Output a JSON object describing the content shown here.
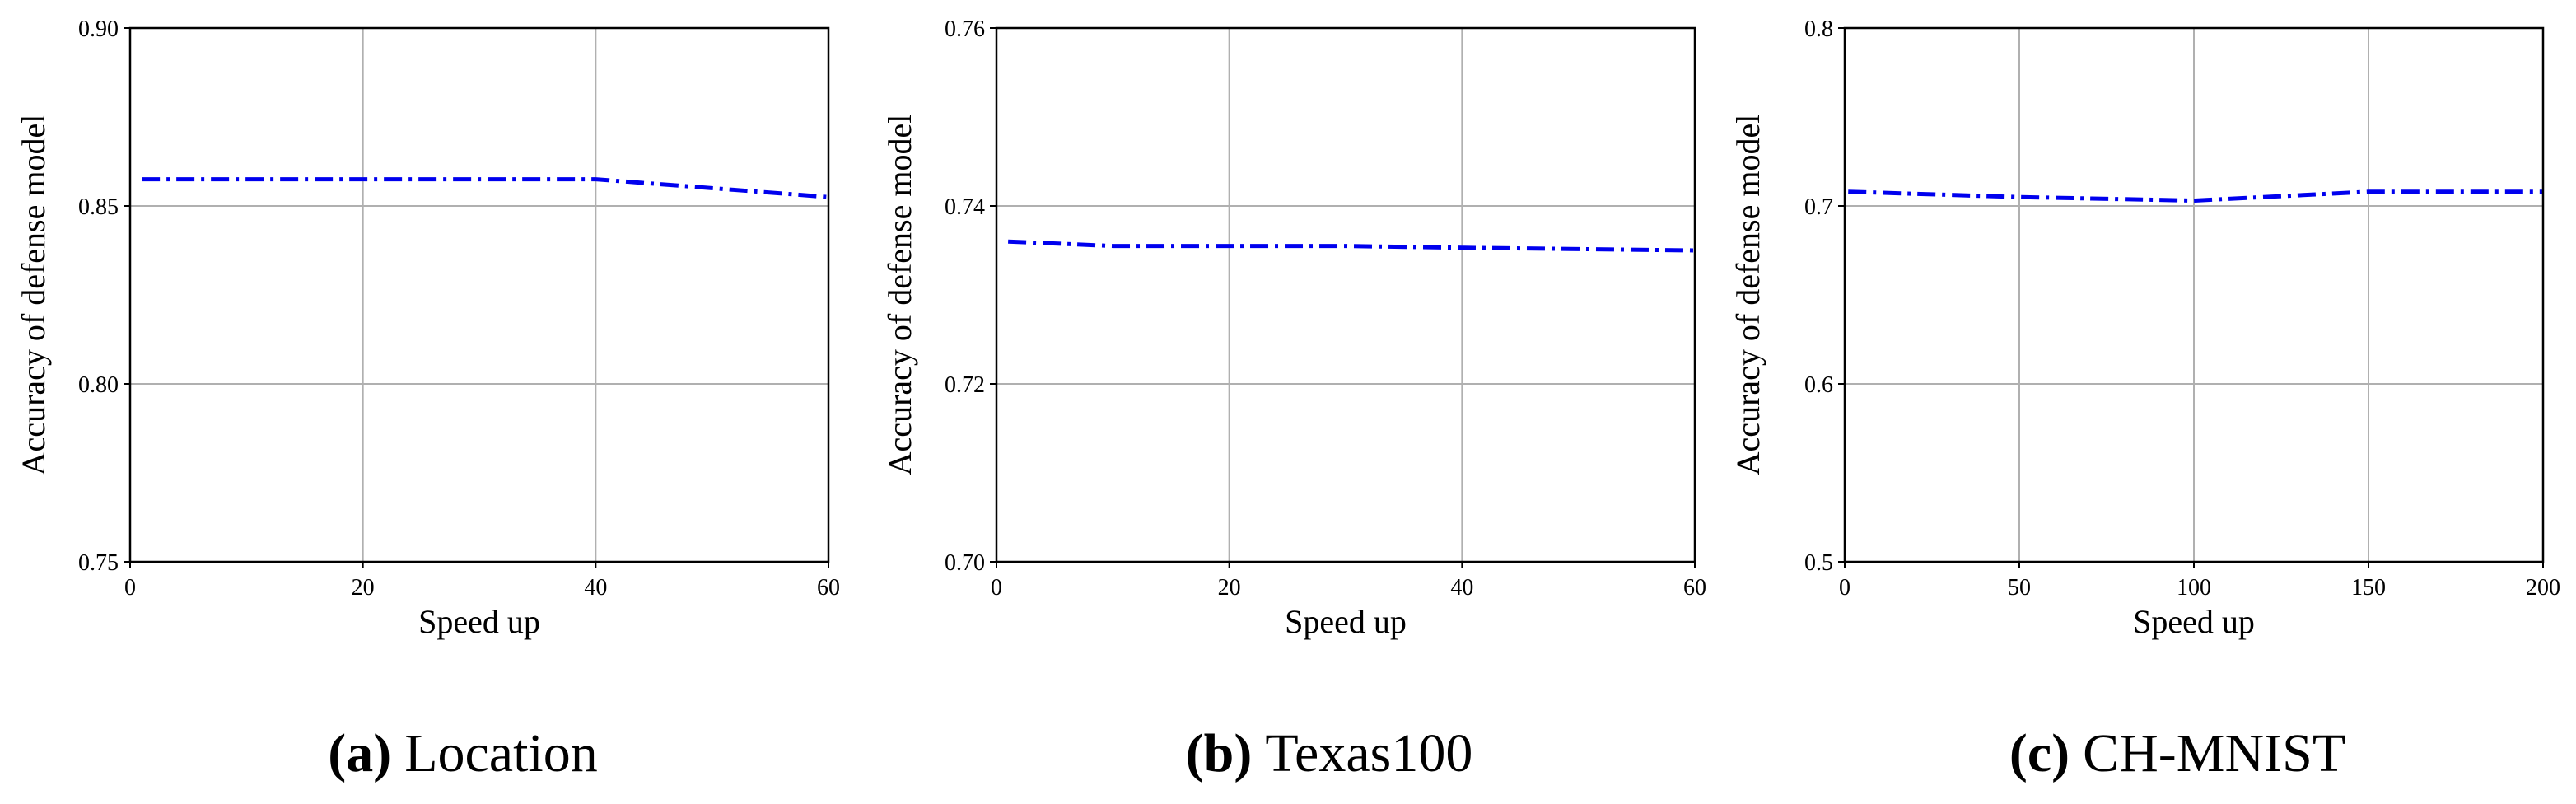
{
  "chart_data": [
    {
      "type": "line",
      "caption_label": "(a)",
      "caption": "Location",
      "xlabel": "Speed up",
      "ylabel": "Accuracy of defense model",
      "x": [
        1,
        10,
        20,
        30,
        40,
        60
      ],
      "values": [
        0.8575,
        0.8575,
        0.8575,
        0.8575,
        0.8575,
        0.8525
      ],
      "color": "#0000ee",
      "xlim": [
        0,
        60
      ],
      "xticks": [
        0,
        20,
        40,
        60
      ],
      "ylim": [
        0.75,
        0.9
      ],
      "yticks": [
        0.75,
        {
          "value": 0.8,
          "label": "0.80"
        },
        0.85,
        {
          "value": 0.9,
          "label": "0.90"
        }
      ],
      "grid": true
    },
    {
      "type": "line",
      "caption_label": "(b)",
      "caption": "Texas100",
      "xlabel": "Speed up",
      "ylabel": "Accuracy of defense model",
      "x": [
        1,
        10,
        20,
        30,
        40,
        60
      ],
      "values": [
        0.736,
        0.7355,
        0.7355,
        0.7355,
        0.7353,
        0.735
      ],
      "color": "#0000ee",
      "xlim": [
        0,
        60
      ],
      "xticks": [
        0,
        20,
        40,
        60
      ],
      "ylim": [
        0.7,
        0.76
      ],
      "yticks": [
        {
          "value": 0.7,
          "label": "0.70"
        },
        0.72,
        0.74,
        0.76
      ],
      "grid": true
    },
    {
      "type": "line",
      "caption_label": "(c)",
      "caption": "CH-MNIST",
      "xlabel": "Speed up",
      "ylabel": "Accuracy of defense model",
      "x": [
        1,
        50,
        100,
        150,
        200
      ],
      "values": [
        0.708,
        0.705,
        0.703,
        0.708,
        0.708
      ],
      "color": "#0000ee",
      "xlim": [
        0,
        200
      ],
      "xticks": [
        0,
        50,
        100,
        150,
        200
      ],
      "ylim": [
        0.5,
        0.8
      ],
      "yticks": [
        0.5,
        0.6,
        0.7,
        0.8
      ],
      "grid": true
    }
  ]
}
